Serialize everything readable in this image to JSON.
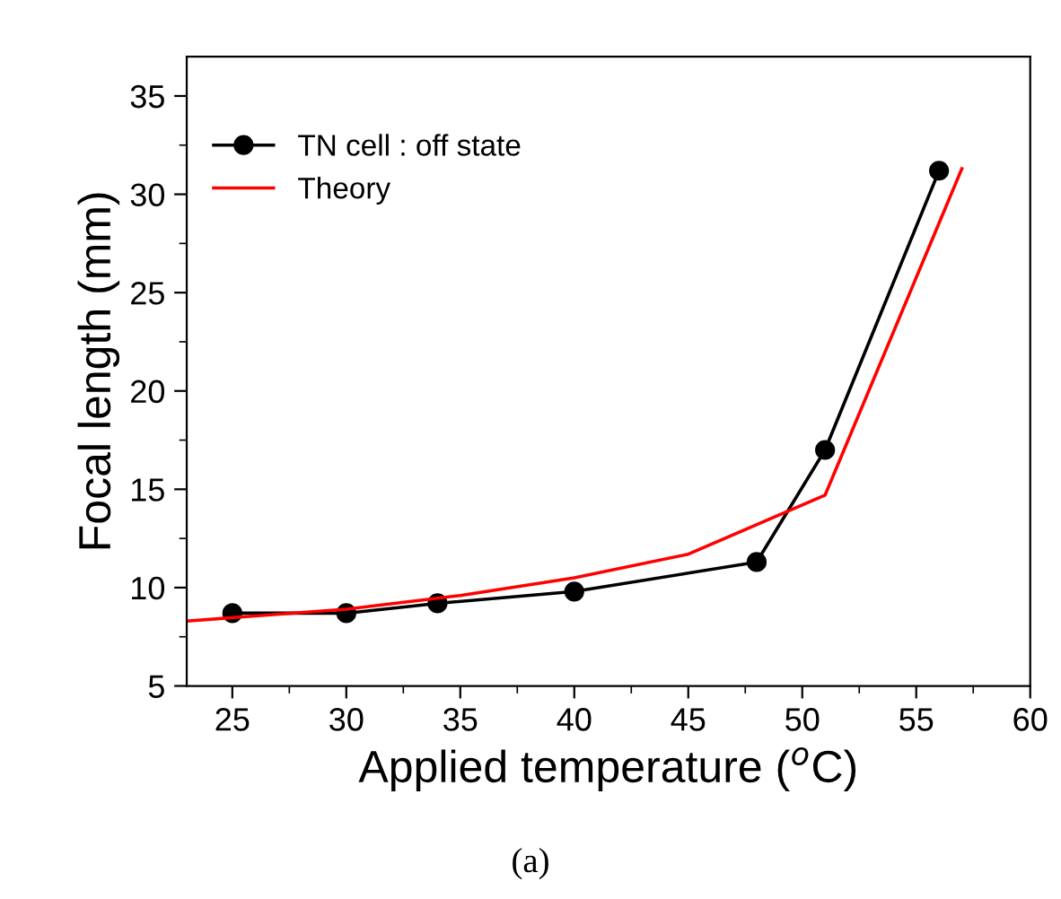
{
  "chart_data": {
    "type": "line",
    "xlabel": "Applied temperature ($^{o}$C)",
    "ylabel": "Focal length (mm)",
    "xlim": [
      23,
      60
    ],
    "xticks": [
      25,
      30,
      35,
      40,
      45,
      50,
      55,
      60
    ],
    "ylim": [
      5,
      37
    ],
    "yticks": [
      5,
      10,
      15,
      20,
      25,
      30,
      35
    ],
    "legend": "top left",
    "grid": false,
    "annotations": [
      "(a)"
    ],
    "series": [
      {
        "name": "TN cell : off state",
        "color": "#000000",
        "marker": "circle",
        "x": [
          25,
          30,
          34,
          40,
          48,
          51,
          56
        ],
        "values": [
          8.7,
          8.7,
          9.2,
          9.8,
          11.3,
          17.0,
          31.2
        ]
      },
      {
        "name": "Theory",
        "color": "#ff0000",
        "marker": "none",
        "x": [
          23,
          30,
          35,
          40,
          45,
          51,
          57
        ],
        "values": [
          8.3,
          8.9,
          9.6,
          10.5,
          11.7,
          14.7,
          31.3
        ]
      }
    ]
  }
}
